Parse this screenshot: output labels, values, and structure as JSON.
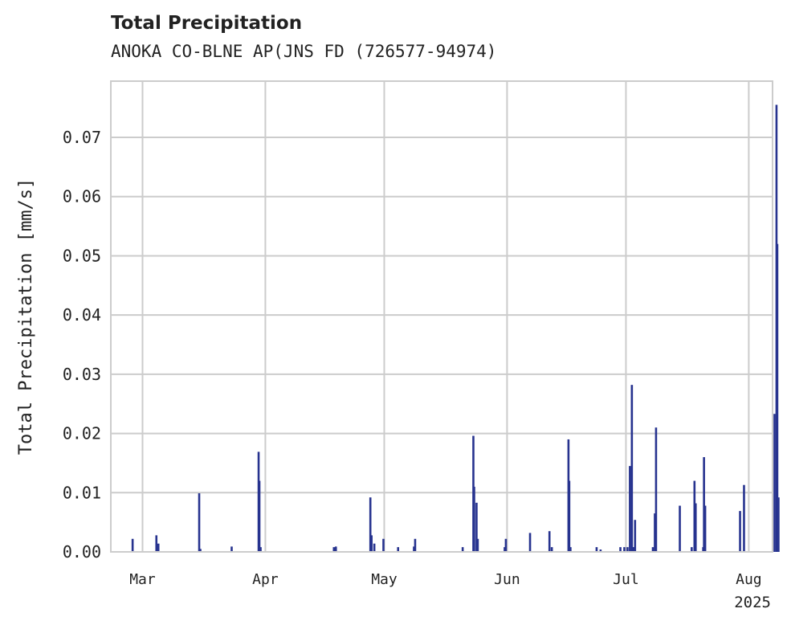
{
  "chart_data": {
    "type": "bar",
    "title": "Total Precipitation",
    "subtitle": "ANOKA CO-BLNE AP(JNS FD (726577-94974)",
    "ylabel": "Total Precipitation [mm/s]",
    "xlabel": "",
    "year_label": "2025",
    "x_unit": "day of year 2025",
    "xlim": [
      52,
      219
    ],
    "ylim": [
      0,
      0.0795
    ],
    "y_ticks": [
      0.0,
      0.01,
      0.02,
      0.03,
      0.04,
      0.05,
      0.06,
      0.07
    ],
    "y_tick_labels": [
      "0.00",
      "0.01",
      "0.02",
      "0.03",
      "0.04",
      "0.05",
      "0.06",
      "0.07"
    ],
    "x_ticks": [
      60,
      91,
      121,
      152,
      182,
      213
    ],
    "x_tick_labels": [
      "Mar",
      "Apr",
      "May",
      "Jun",
      "Jul",
      "Aug"
    ],
    "grid": true,
    "color": "#27338f",
    "series": [
      {
        "name": "Total Precipitation",
        "x": [
          57.5,
          63.5,
          64.0,
          74.3,
          74.6,
          82.5,
          89.3,
          89.5,
          89.8,
          108.3,
          108.8,
          117.5,
          117.8,
          118.5,
          120.8,
          124.5,
          128.5,
          128.8,
          140.8,
          143.5,
          143.7,
          144.3,
          144.6,
          151.4,
          151.7,
          157.8,
          162.7,
          163.3,
          167.5,
          167.7,
          168.0,
          174.6,
          175.6,
          180.6,
          181.6,
          182.4,
          183.0,
          183.5,
          183.7,
          183.9,
          184.3,
          188.8,
          189.3,
          189.6,
          195.6,
          198.6,
          199.3,
          199.6,
          201.5,
          201.7,
          202.0,
          210.8,
          211.8,
          219.5,
          220.0,
          220.2,
          220.5
        ],
        "values": [
          0.0022,
          0.0028,
          0.0014,
          0.0099,
          0.0005,
          0.0009,
          0.0169,
          0.012,
          0.0008,
          0.0008,
          0.0009,
          0.0092,
          0.0028,
          0.0014,
          0.0022,
          0.0008,
          0.0009,
          0.0022,
          0.0008,
          0.0196,
          0.011,
          0.0083,
          0.0022,
          0.0008,
          0.0022,
          0.0032,
          0.0035,
          0.0008,
          0.019,
          0.012,
          0.0008,
          0.0008,
          0.0004,
          0.0008,
          0.0008,
          0.0008,
          0.0145,
          0.0282,
          0.0008,
          0.0008,
          0.0054,
          0.0008,
          0.0065,
          0.021,
          0.0078,
          0.0008,
          0.012,
          0.0082,
          0.0008,
          0.016,
          0.0078,
          0.0069,
          0.0113,
          0.0233,
          0.0755,
          0.052,
          0.0092
        ]
      }
    ]
  }
}
